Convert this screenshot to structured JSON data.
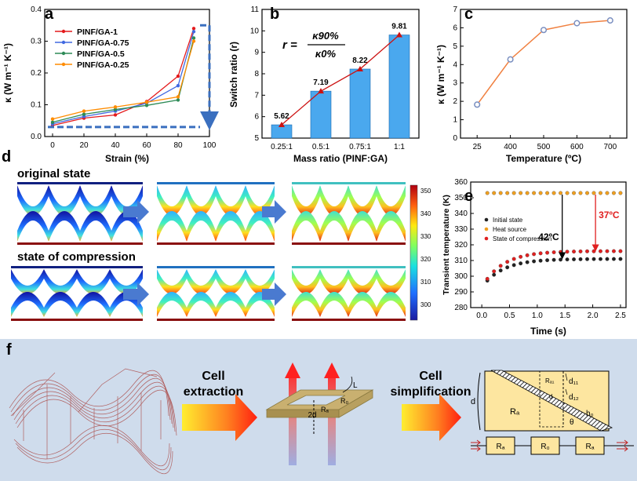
{
  "panel_letters": {
    "a": "a",
    "b": "b",
    "c": "c",
    "d": "d",
    "e": "e",
    "f": "f"
  },
  "chart_data": [
    {
      "id": "a",
      "type": "line",
      "xlabel": "Strain (%)",
      "ylabel": "κ (W m⁻¹ K⁻¹)",
      "x": [
        0,
        20,
        40,
        60,
        80,
        90
      ],
      "xlim": [
        -5,
        100
      ],
      "ylim": [
        0,
        0.4
      ],
      "xticks": [
        "0",
        "20",
        "40",
        "60",
        "80",
        "100"
      ],
      "yticks": [
        "0.0",
        "0.1",
        "0.2",
        "0.3",
        "0.4"
      ],
      "legend_position": "top-left",
      "series": [
        {
          "name": "PINF/GA-1",
          "color": "#e41a1c",
          "values": [
            0.035,
            0.058,
            0.068,
            0.11,
            0.19,
            0.34
          ]
        },
        {
          "name": "PINF/GA-0.75",
          "color": "#4169e1",
          "values": [
            0.04,
            0.063,
            0.08,
            0.105,
            0.16,
            0.33
          ]
        },
        {
          "name": "PINF/GA-0.5",
          "color": "#2e8b57",
          "values": [
            0.045,
            0.07,
            0.085,
            0.098,
            0.115,
            0.31
          ]
        },
        {
          "name": "PINF/GA-0.25",
          "color": "#ff8c00",
          "values": [
            0.055,
            0.08,
            0.093,
            0.108,
            0.125,
            0.3
          ]
        }
      ],
      "annotation_color": "#3a6fbf"
    },
    {
      "id": "b",
      "type": "bar",
      "xlabel": "Mass ratio (PINF:GA)",
      "ylabel": "Switch ratio (r)",
      "categories": [
        "0.25:1",
        "0.5:1",
        "0.75:1",
        "1:1"
      ],
      "values": [
        5.62,
        7.19,
        8.22,
        9.81
      ],
      "data_labels": [
        "5.62",
        "7.19",
        "8.22",
        "9.81"
      ],
      "ylim": [
        5,
        11
      ],
      "yticks": [
        "5",
        "6",
        "7",
        "8",
        "9",
        "10",
        "11"
      ],
      "bar_color": "#4aa8ee",
      "line_color": "#cc1111",
      "formula": {
        "lhs": "r =",
        "num": "κ90%",
        "den": "κ0%"
      }
    },
    {
      "id": "c",
      "type": "line",
      "xlabel": "Temperature (ºC)",
      "ylabel": "κ (W m⁻¹ K⁻¹)",
      "x": [
        25,
        400,
        500,
        600,
        700
      ],
      "categories": [
        "25",
        "400",
        "500",
        "600",
        "700"
      ],
      "values": [
        1.82,
        4.28,
        5.88,
        6.25,
        6.4
      ],
      "ylim": [
        0,
        7
      ],
      "yticks": [
        "0",
        "1",
        "2",
        "3",
        "4",
        "5",
        "6",
        "7"
      ],
      "line_color": "#f08040",
      "marker_color": "#7a8fc0"
    },
    {
      "id": "e",
      "type": "scatter",
      "xlabel": "Time (s)",
      "ylabel": "Transient temperature (K)",
      "xlim": [
        -0.2,
        2.6
      ],
      "ylim": [
        280,
        360
      ],
      "xticks": [
        "0.0",
        "0.5",
        "1.0",
        "1.5",
        "2.0",
        "2.5"
      ],
      "yticks": [
        "280",
        "290",
        "300",
        "310",
        "320",
        "330",
        "340",
        "350",
        "360"
      ],
      "series": [
        {
          "name": "Initial state",
          "color": "#222222",
          "asymptote": 311,
          "start": 293
        },
        {
          "name": "Heat source",
          "color": "#f0a020",
          "asymptote": 353,
          "start": 353
        },
        {
          "name": "State of compression",
          "color": "#e02020",
          "asymptote": 316,
          "start": 293
        }
      ],
      "annotations": [
        {
          "text": "42ºC",
          "color": "#000000"
        },
        {
          "text": "37ºC",
          "color": "#e02020"
        }
      ]
    }
  ],
  "panel_d": {
    "original_label": "original state",
    "compression_label": "state of compression",
    "colorbar_ticks": [
      "350",
      "340",
      "330",
      "320",
      "310",
      "300"
    ]
  },
  "panel_f": {
    "step1": [
      "Cell",
      "extraction"
    ],
    "step2": [
      "Cell",
      "simplification"
    ],
    "cell_labels": {
      "l": "L",
      "r0": "R₀",
      "ra": "Rₐ",
      "d2": "2d"
    },
    "diagram_labels": {
      "d": "d",
      "ra": "Rₐ",
      "ra1": "Rₐ₁",
      "d11": "d₁₁",
      "d12": "d₁₂",
      "h0": "h₀",
      "theta": "θ",
      "blank": "d"
    },
    "resistors": [
      "Rₐ",
      "R₀",
      "Rₐ"
    ]
  }
}
